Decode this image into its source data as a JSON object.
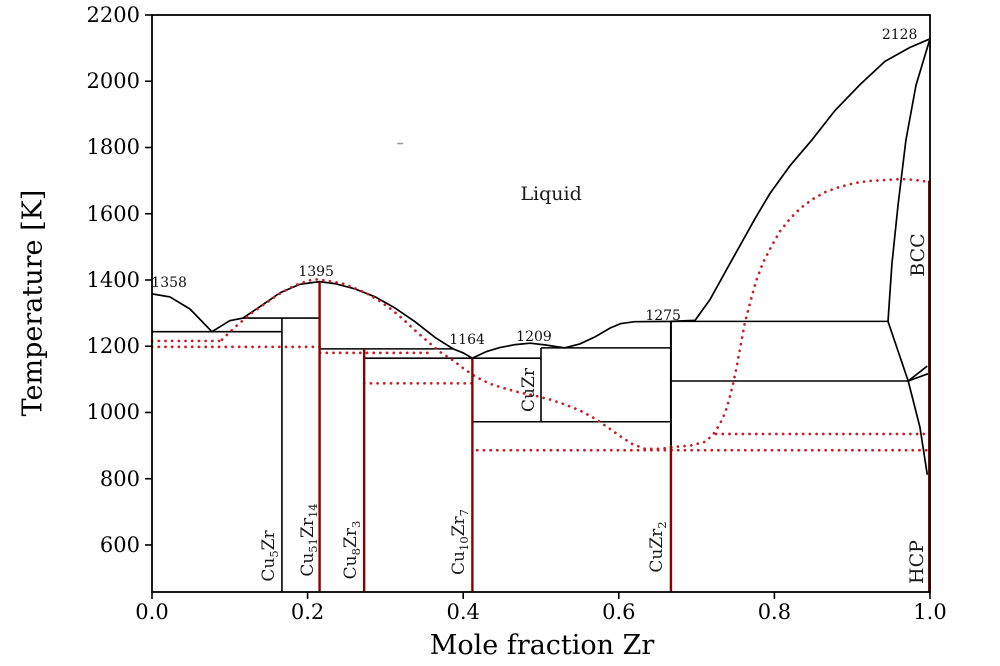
{
  "figure": {
    "kind": "binary phase diagram",
    "system": "Cu-Zr",
    "background": "#ffffff"
  },
  "colors": {
    "boundary": "#000000",
    "compound_line": "#8b0000",
    "model_dotted": "#c81e28",
    "artifact": "#999999"
  },
  "axes": {
    "xlabel": "Mole fraction Zr",
    "ylabel": "Temperature [K]",
    "xlim": [
      0.0,
      1.0
    ],
    "ylim": [
      458,
      2200
    ],
    "xticks": [
      {
        "v": 0.0,
        "label": "0.0"
      },
      {
        "v": 0.2,
        "label": "0.2"
      },
      {
        "v": 0.4,
        "label": "0.4"
      },
      {
        "v": 0.6,
        "label": "0.6"
      },
      {
        "v": 0.8,
        "label": "0.8"
      },
      {
        "v": 1.0,
        "label": "1.0"
      }
    ],
    "yticks": [
      {
        "v": 600,
        "label": "600"
      },
      {
        "v": 800,
        "label": "800"
      },
      {
        "v": 1000,
        "label": "1000"
      },
      {
        "v": 1200,
        "label": "1200"
      },
      {
        "v": 1400,
        "label": "1400"
      },
      {
        "v": 1600,
        "label": "1600"
      },
      {
        "v": 1800,
        "label": "1800"
      },
      {
        "v": 2000,
        "label": "2000"
      },
      {
        "v": 2200,
        "label": "2200"
      }
    ],
    "grid": false,
    "legend": "none"
  },
  "chart_data": {
    "type": "line",
    "x_units": "mole fraction Zr",
    "y_units": "K",
    "series": [
      {
        "name": "liquidus-black",
        "color": "#000000",
        "style": "solid",
        "points": [
          [
            0.0,
            1358
          ],
          [
            0.023,
            1349
          ],
          [
            0.049,
            1312
          ],
          [
            0.077,
            1244
          ],
          [
            0.1,
            1277
          ],
          [
            0.117,
            1285
          ],
          [
            0.139,
            1320
          ],
          [
            0.165,
            1362
          ],
          [
            0.19,
            1387
          ],
          [
            0.2154,
            1395
          ],
          [
            0.235,
            1389
          ],
          [
            0.261,
            1373
          ],
          [
            0.287,
            1349
          ],
          [
            0.312,
            1316
          ],
          [
            0.338,
            1274
          ],
          [
            0.364,
            1226
          ],
          [
            0.387,
            1192
          ],
          [
            0.4,
            1180
          ],
          [
            0.4118,
            1164
          ],
          [
            0.43,
            1184
          ],
          [
            0.447,
            1196
          ],
          [
            0.467,
            1205
          ],
          [
            0.486,
            1209
          ],
          [
            0.505,
            1204
          ],
          [
            0.53,
            1195
          ],
          [
            0.55,
            1207
          ],
          [
            0.57,
            1229
          ],
          [
            0.589,
            1255
          ],
          [
            0.602,
            1268
          ],
          [
            0.62,
            1274
          ],
          [
            0.667,
            1275
          ],
          [
            0.698,
            1278
          ],
          [
            0.717,
            1340
          ],
          [
            0.737,
            1425
          ],
          [
            0.756,
            1505
          ],
          [
            0.775,
            1585
          ],
          [
            0.794,
            1660
          ],
          [
            0.82,
            1745
          ],
          [
            0.848,
            1822
          ],
          [
            0.878,
            1912
          ],
          [
            0.91,
            1990
          ],
          [
            0.942,
            2060
          ],
          [
            0.974,
            2102
          ],
          [
            1.0,
            2128
          ]
        ]
      },
      {
        "name": "bcc-solidus",
        "color": "#000000",
        "style": "solid",
        "points": [
          [
            1.0,
            2128
          ],
          [
            0.982,
            1988
          ],
          [
            0.969,
            1822
          ],
          [
            0.959,
            1628
          ],
          [
            0.951,
            1448
          ],
          [
            0.946,
            1275
          ]
        ]
      },
      {
        "name": "bcc-lower-left-boundary",
        "color": "#000000",
        "style": "solid",
        "points": [
          [
            0.946,
            1275
          ],
          [
            0.972,
            1095
          ]
        ]
      },
      {
        "name": "bcc-hcp-transus",
        "color": "#000000",
        "style": "solid",
        "points": [
          [
            0.972,
            1095
          ],
          [
            0.9965,
            1140
          ]
        ]
      },
      {
        "name": "hcp-wedge-line",
        "color": "#000000",
        "style": "solid",
        "points": [
          [
            0.972,
            1095
          ],
          [
            0.9987,
            1118
          ]
        ]
      },
      {
        "name": "hcp-left-boundary",
        "color": "#000000",
        "style": "solid",
        "points": [
          [
            0.972,
            1095
          ],
          [
            0.987,
            956
          ],
          [
            0.9965,
            812
          ]
        ]
      },
      {
        "name": "model-liquidus-dotted",
        "color": "#c81e28",
        "style": "dotted",
        "points": [
          [
            0.09,
            1220
          ],
          [
            0.107,
            1258
          ],
          [
            0.126,
            1296
          ],
          [
            0.145,
            1328
          ],
          [
            0.165,
            1360
          ],
          [
            0.184,
            1384
          ],
          [
            0.201,
            1398
          ],
          [
            0.213,
            1402
          ],
          [
            0.229,
            1396
          ],
          [
            0.244,
            1390
          ],
          [
            0.261,
            1375
          ],
          [
            0.278,
            1357
          ],
          [
            0.293,
            1336
          ],
          [
            0.309,
            1309
          ],
          [
            0.324,
            1279
          ],
          [
            0.339,
            1246
          ],
          [
            0.355,
            1213
          ],
          [
            0.37,
            1183
          ],
          [
            0.386,
            1159
          ],
          [
            0.401,
            1132
          ],
          [
            0.416,
            1108
          ],
          [
            0.434,
            1087
          ],
          [
            0.454,
            1072
          ],
          [
            0.473,
            1060
          ],
          [
            0.492,
            1051
          ],
          [
            0.512,
            1039
          ],
          [
            0.531,
            1024
          ],
          [
            0.55,
            1006
          ],
          [
            0.569,
            982
          ],
          [
            0.586,
            955
          ],
          [
            0.602,
            928
          ],
          [
            0.617,
            905
          ],
          [
            0.634,
            890
          ],
          [
            0.653,
            890
          ],
          [
            0.672,
            896
          ],
          [
            0.692,
            900
          ],
          [
            0.712,
            912
          ],
          [
            0.722,
            936
          ],
          [
            0.73,
            965
          ],
          [
            0.737,
            1001
          ],
          [
            0.742,
            1040
          ],
          [
            0.747,
            1088
          ],
          [
            0.752,
            1144
          ],
          [
            0.757,
            1207
          ],
          [
            0.762,
            1270
          ],
          [
            0.769,
            1333
          ],
          [
            0.776,
            1393
          ],
          [
            0.785,
            1450
          ],
          [
            0.796,
            1501
          ],
          [
            0.807,
            1546
          ],
          [
            0.82,
            1585
          ],
          [
            0.834,
            1618
          ],
          [
            0.85,
            1645
          ],
          [
            0.866,
            1666
          ],
          [
            0.884,
            1681
          ],
          [
            0.904,
            1693
          ],
          [
            0.923,
            1699
          ],
          [
            0.943,
            1702
          ],
          [
            0.964,
            1705
          ],
          [
            0.981,
            1702
          ],
          [
            0.999,
            1696
          ]
        ]
      }
    ],
    "tie_lines_black": [
      {
        "name": "eutectic-Cu-Cu5Zr",
        "T": 1244,
        "x1": 0.0,
        "x2": 0.167
      },
      {
        "name": "peritectic-Cu5Zr",
        "T": 1285,
        "x1": 0.117,
        "x2": 0.216
      },
      {
        "name": "peritectic-Cu8Zr3",
        "T": 1192,
        "x1": 0.216,
        "x2": 0.387
      },
      {
        "name": "eutectic-Cu10Zr7",
        "T": 1164,
        "x1": 0.272,
        "x2": 0.5
      },
      {
        "name": "eutectic-CuZr-CuZr2",
        "T": 1195,
        "x1": 0.5,
        "x2": 0.667
      },
      {
        "name": "eutectoid-CuZr",
        "T": 972,
        "x1": 0.4118,
        "x2": 0.667
      },
      {
        "name": "peritectic-1275",
        "T": 1275,
        "x1": 0.667,
        "x2": 0.946
      },
      {
        "name": "eutectoid-bcc",
        "T": 1095,
        "x1": 0.667,
        "x2": 0.972
      }
    ],
    "vertical_lines": [
      {
        "name": "Cu5Zr-line",
        "x": 0.167,
        "T_top": 1285,
        "T_bottom": 458,
        "color": "#000000",
        "w": 1.6
      },
      {
        "name": "CuZr-line",
        "x": 0.5,
        "T_top": 1195,
        "T_bottom": 972,
        "color": "#000000",
        "w": 1.6
      },
      {
        "name": "CuZr2-line-upper",
        "x": 0.667,
        "T_top": 1275,
        "T_bottom": 900,
        "color": "#000000",
        "w": 2.0
      },
      {
        "name": "Cu51Zr14-line",
        "x": 0.2154,
        "T_top": 1395,
        "T_bottom": 458,
        "color": "#8b0000",
        "w": 2.4
      },
      {
        "name": "Cu8Zr3-line",
        "x": 0.2727,
        "T_top": 1192,
        "T_bottom": 458,
        "color": "#8b0000",
        "w": 2.4
      },
      {
        "name": "Cu10Zr7-line",
        "x": 0.4118,
        "T_top": 1164,
        "T_bottom": 458,
        "color": "#8b0000",
        "w": 2.4
      },
      {
        "name": "CuZr2-line-lower",
        "x": 0.667,
        "T_top": 900,
        "T_bottom": 458,
        "color": "#8b0000",
        "w": 2.4
      },
      {
        "name": "Zr-hcp-line",
        "x": 0.999,
        "T_top": 1700,
        "T_bottom": 458,
        "color": "#8b0000",
        "w": 2.4
      }
    ],
    "dotted_tie_lines_red": [
      {
        "name": "model-row-1216",
        "T": 1216,
        "x1": 0.0,
        "x2": 0.09
      },
      {
        "name": "model-row-1198",
        "T": 1198,
        "x1": 0.0,
        "x2": 0.216
      },
      {
        "name": "model-row-1180",
        "T": 1180,
        "x1": 0.216,
        "x2": 0.355
      },
      {
        "name": "model-row-1088",
        "T": 1088,
        "x1": 0.2727,
        "x2": 0.4118
      },
      {
        "name": "model-row-935",
        "T": 935,
        "x1": 0.725,
        "x2": 0.999
      },
      {
        "name": "model-row-886",
        "T": 886,
        "x1": 0.418,
        "x2": 0.999
      }
    ],
    "artifact_mark": {
      "x": 0.319,
      "T": 1812
    }
  },
  "annotations": [
    {
      "text": "1358",
      "x": 0.022,
      "T": 1392
    },
    {
      "text": "1395",
      "x": 0.211,
      "T": 1423
    },
    {
      "text": "1164",
      "x": 0.405,
      "T": 1220
    },
    {
      "text": "1209",
      "x": 0.491,
      "T": 1228
    },
    {
      "text": "1275",
      "x": 0.657,
      "T": 1290
    },
    {
      "text": "2128",
      "x": 0.961,
      "T": 2140
    }
  ],
  "phase_labels": [
    {
      "name": "liquid-region-label",
      "text": "Liquid",
      "x": 0.513,
      "T": 1660,
      "rot": 0,
      "size": 19
    },
    {
      "name": "bcc-region-label",
      "text": "BCC",
      "x": 0.9846,
      "T": 1475,
      "rot": -90,
      "size": 19
    },
    {
      "name": "hcp-region-label",
      "text": "HCP",
      "x": 0.983,
      "T": 549,
      "rot": -90,
      "size": 19
    },
    {
      "name": "cuzr-phase-label",
      "text": "CuZr",
      "x": 0.4846,
      "T": 1068,
      "rot": -90,
      "size": 17
    },
    {
      "name": "cu5zr-phase-label",
      "text": "Cu|5|Zr",
      "x": 0.152,
      "T": 567,
      "rot": -90,
      "size": 17
    },
    {
      "name": "cu51zr14-phase-label",
      "text": "Cu|51|Zr|14",
      "x": 0.202,
      "T": 615,
      "rot": -90,
      "size": 17
    },
    {
      "name": "cu8zr3-phase-label",
      "text": "Cu|8|Zr|3",
      "x": 0.257,
      "T": 585,
      "rot": -90,
      "size": 17
    },
    {
      "name": "cu10zr7-phase-label",
      "text": "Cu|10|Zr|7",
      "x": 0.396,
      "T": 609,
      "rot": -90,
      "size": 17
    },
    {
      "name": "cuzr2-phase-label",
      "text": "CuZr|2|",
      "x": 0.65,
      "T": 594,
      "rot": -90,
      "size": 17
    }
  ]
}
